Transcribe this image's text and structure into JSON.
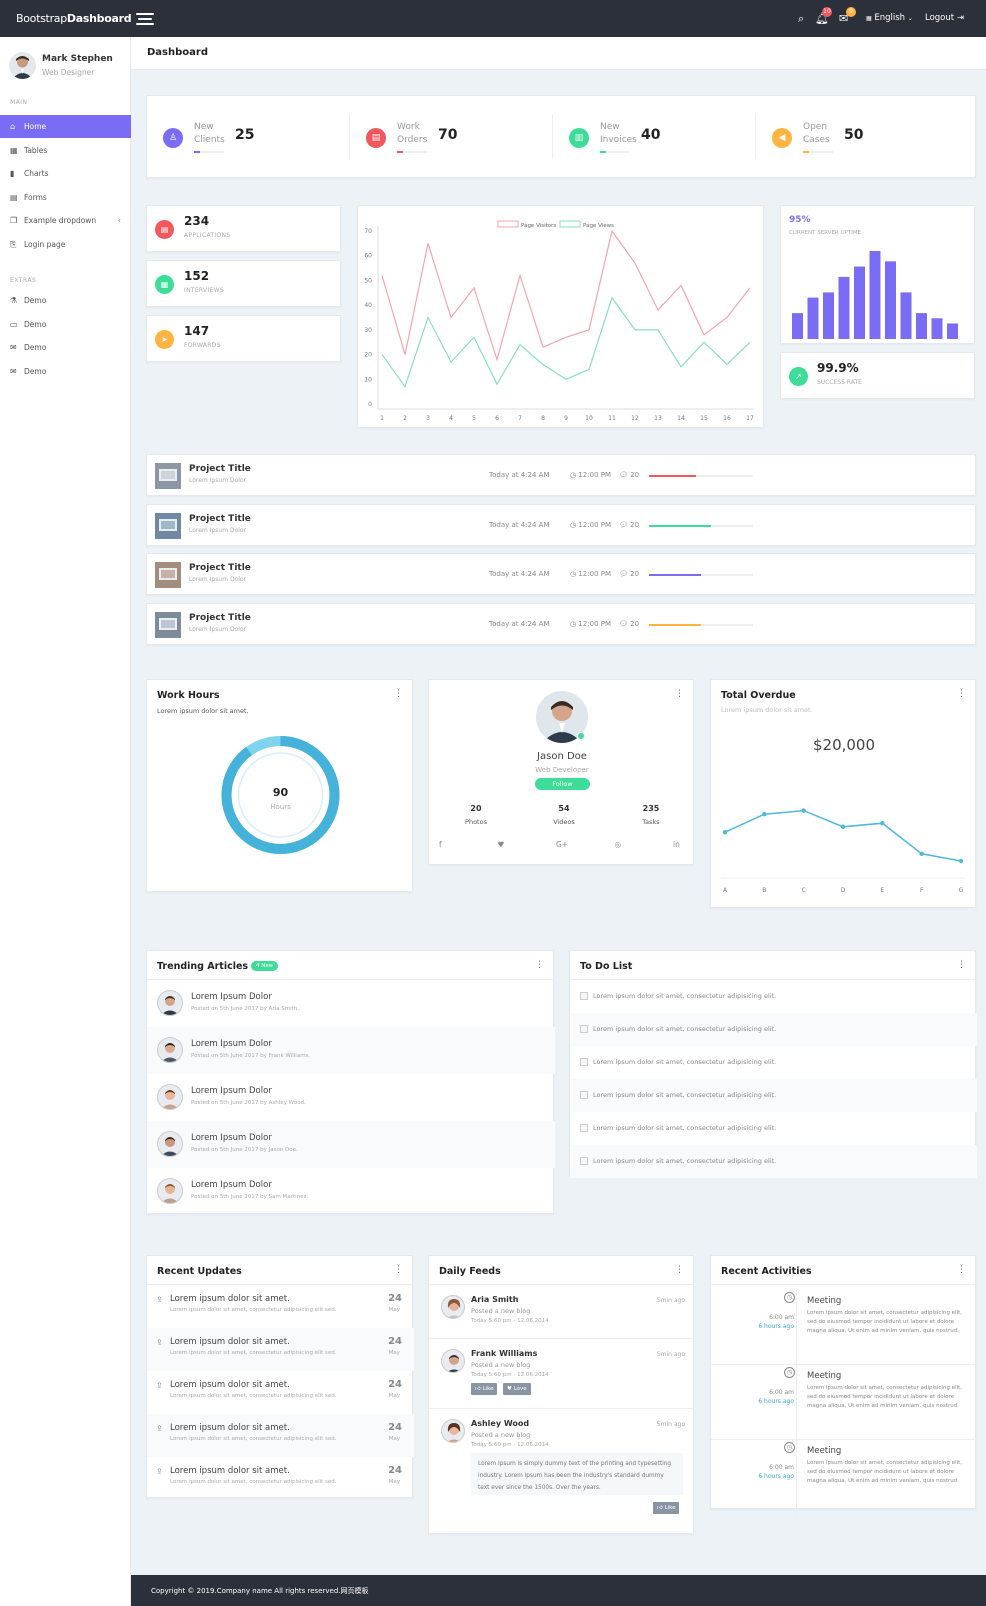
{
  "brand": {
    "part1": "Bootstrap",
    "part2": "Dashboard"
  },
  "topbar": {
    "notif_count": "10",
    "msg_count": "9",
    "language": "English",
    "logout": "Logout"
  },
  "user": {
    "name": "Mark Stephen",
    "role": "Web Designer"
  },
  "sidebar": {
    "main_label": "MAIN",
    "main_items": [
      {
        "label": "Home",
        "icon": "home-icon"
      },
      {
        "label": "Tables",
        "icon": "table-icon"
      },
      {
        "label": "Charts",
        "icon": "chart-icon"
      },
      {
        "label": "Forms",
        "icon": "form-icon"
      },
      {
        "label": "Example dropdown",
        "icon": "dropdown-icon"
      },
      {
        "label": "Login page",
        "icon": "login-icon"
      }
    ],
    "extras_label": "EXTRAS",
    "extra_items": [
      {
        "label": "Demo",
        "icon": "flask-icon"
      },
      {
        "label": "Demo",
        "icon": "monitor-icon"
      },
      {
        "label": "Demo",
        "icon": "mail-icon"
      },
      {
        "label": "Demo",
        "icon": "mail-open-icon"
      }
    ]
  },
  "page_title": "Dashboard",
  "stats": [
    {
      "l1": "New",
      "l2": "Clients",
      "value": "25",
      "color": "#7b6cf6"
    },
    {
      "l1": "Work",
      "l2": "Orders",
      "value": "70",
      "color": "#f0585d"
    },
    {
      "l1": "New",
      "l2": "Invoices",
      "value": "40",
      "color": "#3ddc97"
    },
    {
      "l1": "Open",
      "l2": "Cases",
      "value": "50",
      "color": "#ffb340"
    }
  ],
  "minis": [
    {
      "value": "234",
      "label": "APPLICATIONS",
      "color": "#f0585d"
    },
    {
      "value": "152",
      "label": "INTERVIEWS",
      "color": "#3ddc97"
    },
    {
      "value": "147",
      "label": "FORWARDS",
      "color": "#ffb340"
    }
  ],
  "chart_data": [
    {
      "type": "line",
      "x": [
        1,
        2,
        3,
        4,
        5,
        6,
        7,
        8,
        9,
        10,
        11,
        12,
        13,
        14,
        15,
        16,
        17
      ],
      "series": [
        {
          "name": "Page Visitors",
          "color": "#f7a3ae",
          "values": [
            52,
            20,
            65,
            35,
            47,
            18,
            52,
            23,
            27,
            30,
            70,
            57,
            38,
            48,
            28,
            35,
            47
          ]
        },
        {
          "name": "Page Views",
          "color": "#86e0c0",
          "values": [
            20,
            7,
            35,
            17,
            27,
            8,
            24,
            16,
            10,
            14,
            43,
            30,
            30,
            15,
            25,
            16,
            25
          ]
        }
      ],
      "ylim": [
        0,
        70
      ],
      "yticks": [
        0,
        10,
        20,
        30,
        40,
        50,
        60,
        70
      ]
    },
    {
      "type": "bar",
      "values": [
        10,
        16,
        18,
        24,
        28,
        34,
        30,
        18,
        10,
        8,
        6
      ],
      "color": "#7b6cf6"
    },
    {
      "type": "line",
      "x": [
        "A",
        "B",
        "C",
        "D",
        "E",
        "F",
        "G"
      ],
      "series": [
        {
          "values": [
            42,
            62,
            66,
            48,
            52,
            18,
            10
          ],
          "color": "#4db8e0"
        }
      ],
      "ylim": [
        0,
        100
      ]
    },
    {
      "type": "pie",
      "values": [
        90,
        10
      ],
      "center_value": "90",
      "center_label": "Hours"
    }
  ],
  "uptime": {
    "value": "95%",
    "label": "CURRENT SERVER UPTIME"
  },
  "success": {
    "value": "99.9%",
    "label": "SUCCESS RATE"
  },
  "projects": [
    {
      "title": "Project Title",
      "sub": "Lorem Ipsum Dolor",
      "date": "Today at 4:24 AM",
      "time": "12:00 PM",
      "comments": "20",
      "progress": 45,
      "color": "#f0585d"
    },
    {
      "title": "Project Title",
      "sub": "Lorem Ipsum Dolor",
      "date": "Today at 4:24 AM",
      "time": "12:00 PM",
      "comments": "20",
      "progress": 60,
      "color": "#3ddc97"
    },
    {
      "title": "Project Title",
      "sub": "Lorem Ipsum Dolor",
      "date": "Today at 4:24 AM",
      "time": "12:00 PM",
      "comments": "20",
      "progress": 50,
      "color": "#7b6cf6"
    },
    {
      "title": "Project Title",
      "sub": "Lorem Ipsum Dolor",
      "date": "Today at 4:24 AM",
      "time": "12:00 PM",
      "comments": "20",
      "progress": 50,
      "color": "#ffb340"
    }
  ],
  "workhours": {
    "title": "Work Hours",
    "sub": "Lorem ipsum dolor sit amet."
  },
  "profile": {
    "name": "Jason Doe",
    "role": "Web Developer",
    "follow": "Follow",
    "stats": [
      {
        "n": "20",
        "l": "Photos"
      },
      {
        "n": "54",
        "l": "Videos"
      },
      {
        "n": "235",
        "l": "Tasks"
      }
    ],
    "socials": [
      "f",
      "♥",
      "G+",
      "◎",
      "in"
    ]
  },
  "overdue": {
    "title": "Total Overdue",
    "sub": "Lorem ipsum dolor sit amet.",
    "amount": "$20,000"
  },
  "trending": {
    "title": "Trending Articles",
    "badge": "4 New",
    "items": [
      {
        "title": "Lorem Ipsum Dolor",
        "sub": "Posted on 5th June 2017 by Aria Smith."
      },
      {
        "title": "Lorem Ipsum Dolor",
        "sub": "Posted on 5th June 2017 by Frank Williams."
      },
      {
        "title": "Lorem Ipsum Dolor",
        "sub": "Posted on 5th June 2017 by Ashley Wood."
      },
      {
        "title": "Lorem Ipsum Dolor",
        "sub": "Posted on 5th June 2017 by Jason Doe."
      },
      {
        "title": "Lorem Ipsum Dolor",
        "sub": "Posted on 5th June 2017 by Sam Martinez."
      }
    ]
  },
  "todo": {
    "title": "To Do List",
    "items": [
      "Lorem ipsum dolor sit amet, consectetur adipisicing elit.",
      "Lorem ipsum dolor sit amet, consectetur adipisicing elit.",
      "Lorem ipsum dolor sit amet, consectetur adipisicing elit.",
      "Lorem ipsum dolor sit amet, consectetur adipisicing elit.",
      "Lorem ipsum dolor sit amet, consectetur adipisicing elit.",
      "Lorem ipsum dolor sit amet, consectetur adipisicing elit."
    ]
  },
  "updates": {
    "title": "Recent Updates",
    "items": [
      {
        "title": "Lorem ipsum dolor sit amet.",
        "sub": "Lorem ipsum dolor sit amet, consectetur adipisicing elit sed.",
        "day": "24",
        "month": "May"
      },
      {
        "title": "Lorem ipsum dolor sit amet.",
        "sub": "Lorem ipsum dolor sit amet, consectetur adipisicing elit sed.",
        "day": "24",
        "month": "May"
      },
      {
        "title": "Lorem ipsum dolor sit amet.",
        "sub": "Lorem ipsum dolor sit amet, consectetur adipisicing elit sed.",
        "day": "24",
        "month": "May"
      },
      {
        "title": "Lorem ipsum dolor sit amet.",
        "sub": "Lorem ipsum dolor sit amet, consectetur adipisicing elit sed.",
        "day": "24",
        "month": "May"
      },
      {
        "title": "Lorem ipsum dolor sit amet.",
        "sub": "Lorem ipsum dolor sit amet, consectetur adipisicing elit sed.",
        "day": "24",
        "month": "May"
      }
    ]
  },
  "feeds": {
    "title": "Daily Feeds",
    "items": [
      {
        "name": "Aria Smith",
        "action": "Posted a new blog",
        "date": "Today 5:60 pm - 12.06.2014",
        "ago": "5min ago"
      },
      {
        "name": "Frank Williams",
        "action": "Posted a new blog",
        "date": "Today 5:60 pm - 12.06.2014",
        "ago": "5min ago",
        "like": "Like",
        "love": "Love"
      },
      {
        "name": "Ashley Wood",
        "action": "Posted a new blog",
        "date": "Today 5:60 pm - 12.06.2014",
        "ago": "5min ago",
        "quote": "Lorem Ipsum is simply dummy text of the printing and typesetting industry. Lorem Ipsum has been the industry's standard dummy text ever since the 1500s. Over the years.",
        "like": "Like"
      }
    ]
  },
  "activities": {
    "title": "Recent Activities",
    "items": [
      {
        "time": "6:00 am",
        "ago": "6 hours ago",
        "title": "Meeting",
        "desc": "Lorem ipsum dolor sit amet, consectetur adipisicing elit, sed do eiusmod tempor incididunt ut labore et dolore magna aliqua. Ut enim ad minim veniam, quis nostrud."
      },
      {
        "time": "6:00 am",
        "ago": "6 hours ago",
        "title": "Meeting",
        "desc": "Lorem ipsum dolor sit amet, consectetur adipisicing elit, sed do eiusmod tempor incididunt ut labore et dolore magna aliqua. Ut enim ad minim veniam, quis nostrud."
      },
      {
        "time": "6:00 am",
        "ago": "6 hours ago",
        "title": "Meeting",
        "desc": "Lorem ipsum dolor sit amet, consectetur adipisicing elit, sed do eiusmod tempor incididunt ut labore et dolore magna aliqua. Ut enim ad minim veniam, quis nostrud."
      }
    ]
  },
  "footer": "Copyright © 2019.Company name All rights reserved.网页模板"
}
